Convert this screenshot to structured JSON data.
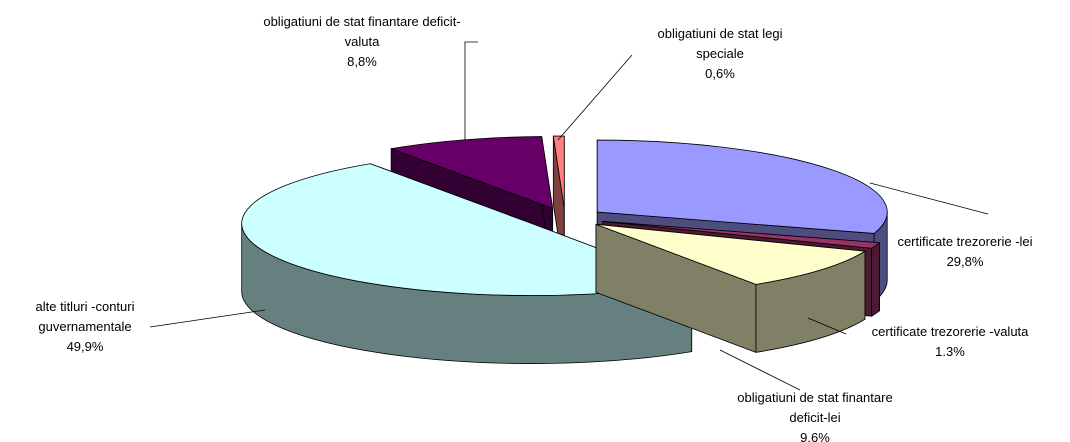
{
  "chart_data": {
    "type": "pie3d",
    "categories": [
      "certificate trezorerie -lei",
      "certificate trezorerie -valuta",
      "obligatiuni de stat finantare deficit-lei",
      "alte titluri -conturi guvernamentale",
      "obligatiuni de stat finantare deficit- valuta",
      "obligatiuni de stat legi speciale"
    ],
    "values": [
      29.8,
      1.3,
      9.6,
      49.9,
      8.8,
      0.6
    ],
    "value_labels": [
      "29,8%",
      "1.3%",
      "9,6%",
      "49,9%",
      "8,8%",
      "0,6%"
    ],
    "colors": [
      "#9999ff",
      "#993366",
      "#ffffcc",
      "#ccffff",
      "#660066",
      "#ff8080"
    ]
  }
}
